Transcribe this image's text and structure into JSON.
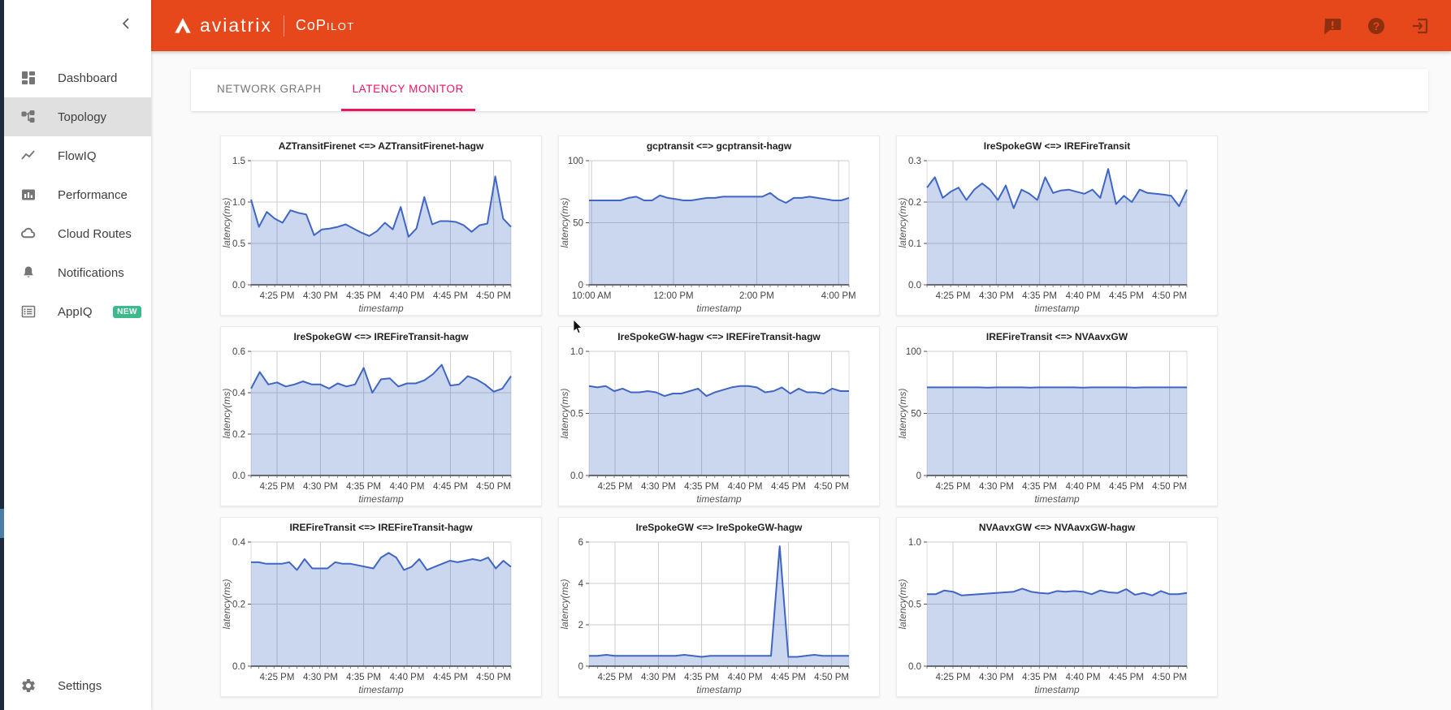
{
  "colors": {
    "header_bg": "#e6481c",
    "header_icon": "#8e2f10",
    "accent_tab": "#ec1562",
    "badge_new": "#3cba8c",
    "chart_line": "#3f66c5",
    "chart_fill": "#c7d2f0",
    "sidebar_active_bg": "#e0e0e0",
    "rail_bg": "#1e2b3b",
    "rail_indicator": "#4d7ea6"
  },
  "header": {
    "brand": "aviatrix",
    "product_main": "CoP",
    "product_small": "ILOT",
    "icons": [
      "alert-message-icon",
      "help-icon",
      "logout-icon"
    ]
  },
  "sidebar": {
    "items": [
      {
        "label": "Dashboard",
        "icon": "dashboard-icon",
        "active": false
      },
      {
        "label": "Topology",
        "icon": "topology-icon",
        "active": true
      },
      {
        "label": "FlowIQ",
        "icon": "flowiq-icon",
        "active": false
      },
      {
        "label": "Performance",
        "icon": "performance-icon",
        "active": false
      },
      {
        "label": "Cloud Routes",
        "icon": "cloud-routes-icon",
        "active": false
      },
      {
        "label": "Notifications",
        "icon": "notifications-icon",
        "active": false
      },
      {
        "label": "AppIQ",
        "icon": "appiq-icon",
        "active": false,
        "badge": "NEW"
      }
    ],
    "settings_label": "Settings"
  },
  "tabs": [
    {
      "label": "NETWORK GRAPH",
      "active": false
    },
    {
      "label": "LATENCY MONITOR",
      "active": true
    }
  ],
  "chart_data": [
    {
      "type": "area",
      "title": "AZTransitFirenet <=> AZTransitFirenet-hagw",
      "xlabel": "timestamp",
      "ylabel": "latency(ms)",
      "ylim": [
        0,
        1.5
      ],
      "grid": true,
      "y_ticks": [
        {
          "v": 0,
          "label": "0.0"
        },
        {
          "v": 0.5,
          "label": "0.5"
        },
        {
          "v": 1,
          "label": "1.0"
        },
        {
          "v": 1.5,
          "label": "1.5"
        }
      ],
      "x_ticks": [
        {
          "label": "4:25 PM",
          "f": 0.1
        },
        {
          "label": "4:30 PM",
          "f": 0.267
        },
        {
          "label": "4:35 PM",
          "f": 0.433
        },
        {
          "label": "4:40 PM",
          "f": 0.6
        },
        {
          "label": "4:45 PM",
          "f": 0.767
        },
        {
          "label": "4:50 PM",
          "f": 0.933
        }
      ],
      "values": [
        1.03,
        0.7,
        0.88,
        0.8,
        0.75,
        0.9,
        0.87,
        0.85,
        0.6,
        0.67,
        0.68,
        0.7,
        0.73,
        0.68,
        0.63,
        0.59,
        0.65,
        0.75,
        0.67,
        0.94,
        0.58,
        0.68,
        1.06,
        0.73,
        0.77,
        0.77,
        0.76,
        0.72,
        0.64,
        0.72,
        0.74,
        1.31,
        0.8,
        0.7
      ]
    },
    {
      "type": "area",
      "title": "gcptransit <=> gcptransit-hagw",
      "xlabel": "timestamp",
      "ylabel": "latency(ms)",
      "ylim": [
        0,
        100
      ],
      "grid": true,
      "y_ticks": [
        {
          "v": 0,
          "label": "0"
        },
        {
          "v": 50,
          "label": "50"
        },
        {
          "v": 100,
          "label": "100"
        }
      ],
      "x_ticks": [
        {
          "label": "10:00 AM",
          "f": 0.01
        },
        {
          "label": "12:00 PM",
          "f": 0.325
        },
        {
          "label": "2:00 PM",
          "f": 0.645
        },
        {
          "label": "4:00 PM",
          "f": 0.96
        }
      ],
      "values": [
        68,
        68,
        68,
        68,
        68,
        70,
        71,
        68,
        68,
        72,
        70,
        69,
        68,
        68,
        69,
        70,
        70,
        71,
        71,
        71,
        71,
        71,
        71,
        74,
        69,
        66,
        70,
        70,
        71,
        70,
        69,
        68,
        68,
        70
      ]
    },
    {
      "type": "area",
      "title": "IreSpokeGW <=> IREFireTransit",
      "xlabel": "timestamp",
      "ylabel": "latency(ms)",
      "ylim": [
        0,
        0.3
      ],
      "grid": true,
      "y_ticks": [
        {
          "v": 0,
          "label": "0.0"
        },
        {
          "v": 0.1,
          "label": "0.1"
        },
        {
          "v": 0.2,
          "label": "0.2"
        },
        {
          "v": 0.3,
          "label": "0.3"
        }
      ],
      "x_ticks": [
        {
          "label": "4:25 PM",
          "f": 0.1
        },
        {
          "label": "4:30 PM",
          "f": 0.267
        },
        {
          "label": "4:35 PM",
          "f": 0.433
        },
        {
          "label": "4:40 PM",
          "f": 0.6
        },
        {
          "label": "4:45 PM",
          "f": 0.767
        },
        {
          "label": "4:50 PM",
          "f": 0.933
        }
      ],
      "values": [
        0.235,
        0.26,
        0.21,
        0.225,
        0.235,
        0.205,
        0.23,
        0.245,
        0.23,
        0.205,
        0.24,
        0.185,
        0.23,
        0.22,
        0.205,
        0.26,
        0.222,
        0.228,
        0.23,
        0.225,
        0.22,
        0.23,
        0.21,
        0.28,
        0.195,
        0.215,
        0.2,
        0.23,
        0.222,
        0.22,
        0.218,
        0.215,
        0.19,
        0.23
      ]
    },
    {
      "type": "area",
      "title": "IreSpokeGW <=> IREFireTransit-hagw",
      "xlabel": "timestamp",
      "ylabel": "latency(ms)",
      "ylim": [
        0,
        0.6
      ],
      "grid": true,
      "y_ticks": [
        {
          "v": 0,
          "label": "0.0"
        },
        {
          "v": 0.2,
          "label": "0.2"
        },
        {
          "v": 0.4,
          "label": "0.4"
        },
        {
          "v": 0.6,
          "label": "0.6"
        }
      ],
      "x_ticks": [
        {
          "label": "4:25 PM",
          "f": 0.1
        },
        {
          "label": "4:30 PM",
          "f": 0.267
        },
        {
          "label": "4:35 PM",
          "f": 0.433
        },
        {
          "label": "4:40 PM",
          "f": 0.6
        },
        {
          "label": "4:45 PM",
          "f": 0.767
        },
        {
          "label": "4:50 PM",
          "f": 0.933
        }
      ],
      "values": [
        0.42,
        0.5,
        0.44,
        0.45,
        0.43,
        0.44,
        0.455,
        0.44,
        0.44,
        0.42,
        0.445,
        0.43,
        0.44,
        0.52,
        0.4,
        0.465,
        0.47,
        0.43,
        0.445,
        0.445,
        0.46,
        0.49,
        0.535,
        0.435,
        0.44,
        0.48,
        0.465,
        0.44,
        0.405,
        0.42,
        0.48
      ]
    },
    {
      "type": "area",
      "title": "IreSpokeGW-hagw <=> IREFireTransit-hagw",
      "xlabel": "timestamp",
      "ylabel": "latency(ms)",
      "ylim": [
        0,
        1.0
      ],
      "grid": true,
      "y_ticks": [
        {
          "v": 0,
          "label": "0.0"
        },
        {
          "v": 0.5,
          "label": "0.5"
        },
        {
          "v": 1,
          "label": "1.0"
        }
      ],
      "x_ticks": [
        {
          "label": "4:25 PM",
          "f": 0.1
        },
        {
          "label": "4:30 PM",
          "f": 0.267
        },
        {
          "label": "4:35 PM",
          "f": 0.433
        },
        {
          "label": "4:40 PM",
          "f": 0.6
        },
        {
          "label": "4:45 PM",
          "f": 0.767
        },
        {
          "label": "4:50 PM",
          "f": 0.933
        }
      ],
      "values": [
        0.72,
        0.71,
        0.72,
        0.68,
        0.7,
        0.67,
        0.67,
        0.68,
        0.67,
        0.64,
        0.66,
        0.66,
        0.68,
        0.7,
        0.64,
        0.67,
        0.69,
        0.71,
        0.72,
        0.72,
        0.71,
        0.67,
        0.68,
        0.71,
        0.66,
        0.7,
        0.67,
        0.67,
        0.66,
        0.7,
        0.68,
        0.68
      ]
    },
    {
      "type": "area",
      "title": "IREFireTransit <=> NVAavxGW",
      "xlabel": "timestamp",
      "ylabel": "latency(ms)",
      "ylim": [
        0,
        100
      ],
      "grid": true,
      "y_ticks": [
        {
          "v": 0,
          "label": "0"
        },
        {
          "v": 50,
          "label": "50"
        },
        {
          "v": 100,
          "label": "100"
        }
      ],
      "x_ticks": [
        {
          "label": "4:25 PM",
          "f": 0.1
        },
        {
          "label": "4:30 PM",
          "f": 0.267
        },
        {
          "label": "4:35 PM",
          "f": 0.433
        },
        {
          "label": "4:40 PM",
          "f": 0.6
        },
        {
          "label": "4:45 PM",
          "f": 0.767
        },
        {
          "label": "4:50 PM",
          "f": 0.933
        }
      ],
      "values": [
        71,
        71,
        71,
        71,
        71,
        71,
        71,
        70.8,
        71,
        71,
        71,
        71,
        70.8,
        71,
        71,
        71,
        71,
        71,
        70.8,
        71,
        71,
        71,
        71,
        71,
        70.7,
        71,
        71,
        71,
        71,
        71,
        71
      ]
    },
    {
      "type": "area",
      "title": "IREFireTransit <=> IREFireTransit-hagw",
      "xlabel": "timestamp",
      "ylabel": "latency(ms)",
      "ylim": [
        0,
        0.4
      ],
      "grid": true,
      "y_ticks": [
        {
          "v": 0,
          "label": "0.0"
        },
        {
          "v": 0.2,
          "label": "0.2"
        },
        {
          "v": 0.4,
          "label": "0.4"
        }
      ],
      "x_ticks": [
        {
          "label": "4:25 PM",
          "f": 0.1
        },
        {
          "label": "4:30 PM",
          "f": 0.267
        },
        {
          "label": "4:35 PM",
          "f": 0.433
        },
        {
          "label": "4:40 PM",
          "f": 0.6
        },
        {
          "label": "4:45 PM",
          "f": 0.767
        },
        {
          "label": "4:50 PM",
          "f": 0.933
        }
      ],
      "values": [
        0.335,
        0.335,
        0.33,
        0.33,
        0.33,
        0.335,
        0.31,
        0.345,
        0.315,
        0.315,
        0.315,
        0.335,
        0.33,
        0.33,
        0.325,
        0.32,
        0.315,
        0.35,
        0.365,
        0.35,
        0.31,
        0.32,
        0.345,
        0.31,
        0.32,
        0.33,
        0.34,
        0.335,
        0.34,
        0.345,
        0.34,
        0.35,
        0.315,
        0.34,
        0.32
      ]
    },
    {
      "type": "area",
      "title": "IreSpokeGW <=> IreSpokeGW-hagw",
      "xlabel": "timestamp",
      "ylabel": "latency(ms)",
      "ylim": [
        0,
        6
      ],
      "grid": true,
      "y_ticks": [
        {
          "v": 0,
          "label": "0"
        },
        {
          "v": 2,
          "label": "2"
        },
        {
          "v": 4,
          "label": "4"
        },
        {
          "v": 6,
          "label": "6"
        }
      ],
      "x_ticks": [
        {
          "label": "4:25 PM",
          "f": 0.1
        },
        {
          "label": "4:30 PM",
          "f": 0.267
        },
        {
          "label": "4:35 PM",
          "f": 0.433
        },
        {
          "label": "4:40 PM",
          "f": 0.6
        },
        {
          "label": "4:45 PM",
          "f": 0.767
        },
        {
          "label": "4:50 PM",
          "f": 0.933
        }
      ],
      "values": [
        0.5,
        0.5,
        0.55,
        0.5,
        0.5,
        0.5,
        0.5,
        0.5,
        0.5,
        0.5,
        0.5,
        0.55,
        0.5,
        0.45,
        0.5,
        0.5,
        0.5,
        0.5,
        0.5,
        0.5,
        0.5,
        0.5,
        5.8,
        0.45,
        0.45,
        0.5,
        0.55,
        0.5,
        0.5,
        0.5,
        0.5
      ]
    },
    {
      "type": "area",
      "title": "NVAavxGW <=> NVAavxGW-hagw",
      "xlabel": "timestamp",
      "ylabel": "latency(ms)",
      "ylim": [
        0,
        1.0
      ],
      "grid": true,
      "y_ticks": [
        {
          "v": 0,
          "label": "0.0"
        },
        {
          "v": 0.5,
          "label": "0.5"
        },
        {
          "v": 1,
          "label": "1.0"
        }
      ],
      "x_ticks": [
        {
          "label": "4:25 PM",
          "f": 0.1
        },
        {
          "label": "4:30 PM",
          "f": 0.267
        },
        {
          "label": "4:35 PM",
          "f": 0.433
        },
        {
          "label": "4:40 PM",
          "f": 0.6
        },
        {
          "label": "4:45 PM",
          "f": 0.767
        },
        {
          "label": "4:50 PM",
          "f": 0.933
        }
      ],
      "values": [
        0.58,
        0.58,
        0.61,
        0.6,
        0.57,
        0.575,
        0.58,
        0.585,
        0.59,
        0.595,
        0.6,
        0.625,
        0.6,
        0.59,
        0.585,
        0.605,
        0.6,
        0.605,
        0.6,
        0.58,
        0.61,
        0.595,
        0.59,
        0.62,
        0.575,
        0.59,
        0.57,
        0.605,
        0.58,
        0.58,
        0.59
      ]
    }
  ]
}
